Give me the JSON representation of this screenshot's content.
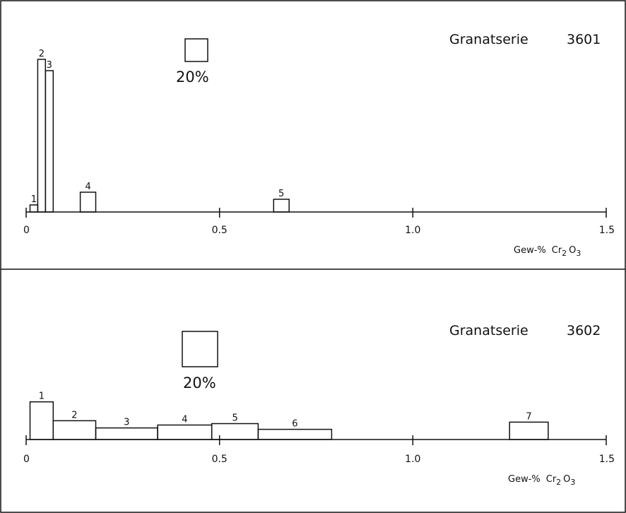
{
  "chart_data": [
    {
      "type": "bar",
      "title": "Granatserie",
      "series_id": "3601",
      "scale_label": "20%",
      "xlabel": {
        "main": "Gew-%",
        "formula": [
          "Cr",
          "2",
          "O",
          "3"
        ]
      },
      "xlim": [
        0,
        1.5
      ],
      "xticks": [
        "0",
        "0.5",
        "1.0",
        "1.5"
      ],
      "bars": [
        {
          "label": "1",
          "x0": 0.01,
          "x1": 0.03,
          "value": 2.5
        },
        {
          "label": "2",
          "x0": 0.03,
          "x1": 0.05,
          "value": 54
        },
        {
          "label": "3",
          "x0": 0.05,
          "x1": 0.07,
          "value": 50
        },
        {
          "label": "4",
          "x0": 0.14,
          "x1": 0.18,
          "value": 7
        },
        {
          "label": "5",
          "x0": 0.64,
          "x1": 0.68,
          "value": 4.5
        }
      ]
    },
    {
      "type": "bar",
      "title": "Granatserie",
      "series_id": "3602",
      "scale_label": "20%",
      "xlabel": {
        "main": "Gew-%",
        "formula": [
          "Cr",
          "2",
          "O",
          "3"
        ]
      },
      "xlim": [
        0,
        1.5
      ],
      "xticks": [
        "0",
        "0.5",
        "1.0",
        "1.5"
      ],
      "bars": [
        {
          "label": "1",
          "x0": 0.01,
          "x1": 0.07,
          "value": 13
        },
        {
          "label": "2",
          "x0": 0.07,
          "x1": 0.18,
          "value": 6.5
        },
        {
          "label": "3",
          "x0": 0.18,
          "x1": 0.34,
          "value": 4
        },
        {
          "label": "4",
          "x0": 0.34,
          "x1": 0.48,
          "value": 5
        },
        {
          "label": "5",
          "x0": 0.48,
          "x1": 0.6,
          "value": 5.5
        },
        {
          "label": "6",
          "x0": 0.6,
          "x1": 0.79,
          "value": 3.5
        },
        {
          "label": "7",
          "x0": 1.25,
          "x1": 1.35,
          "value": 6
        }
      ]
    }
  ]
}
